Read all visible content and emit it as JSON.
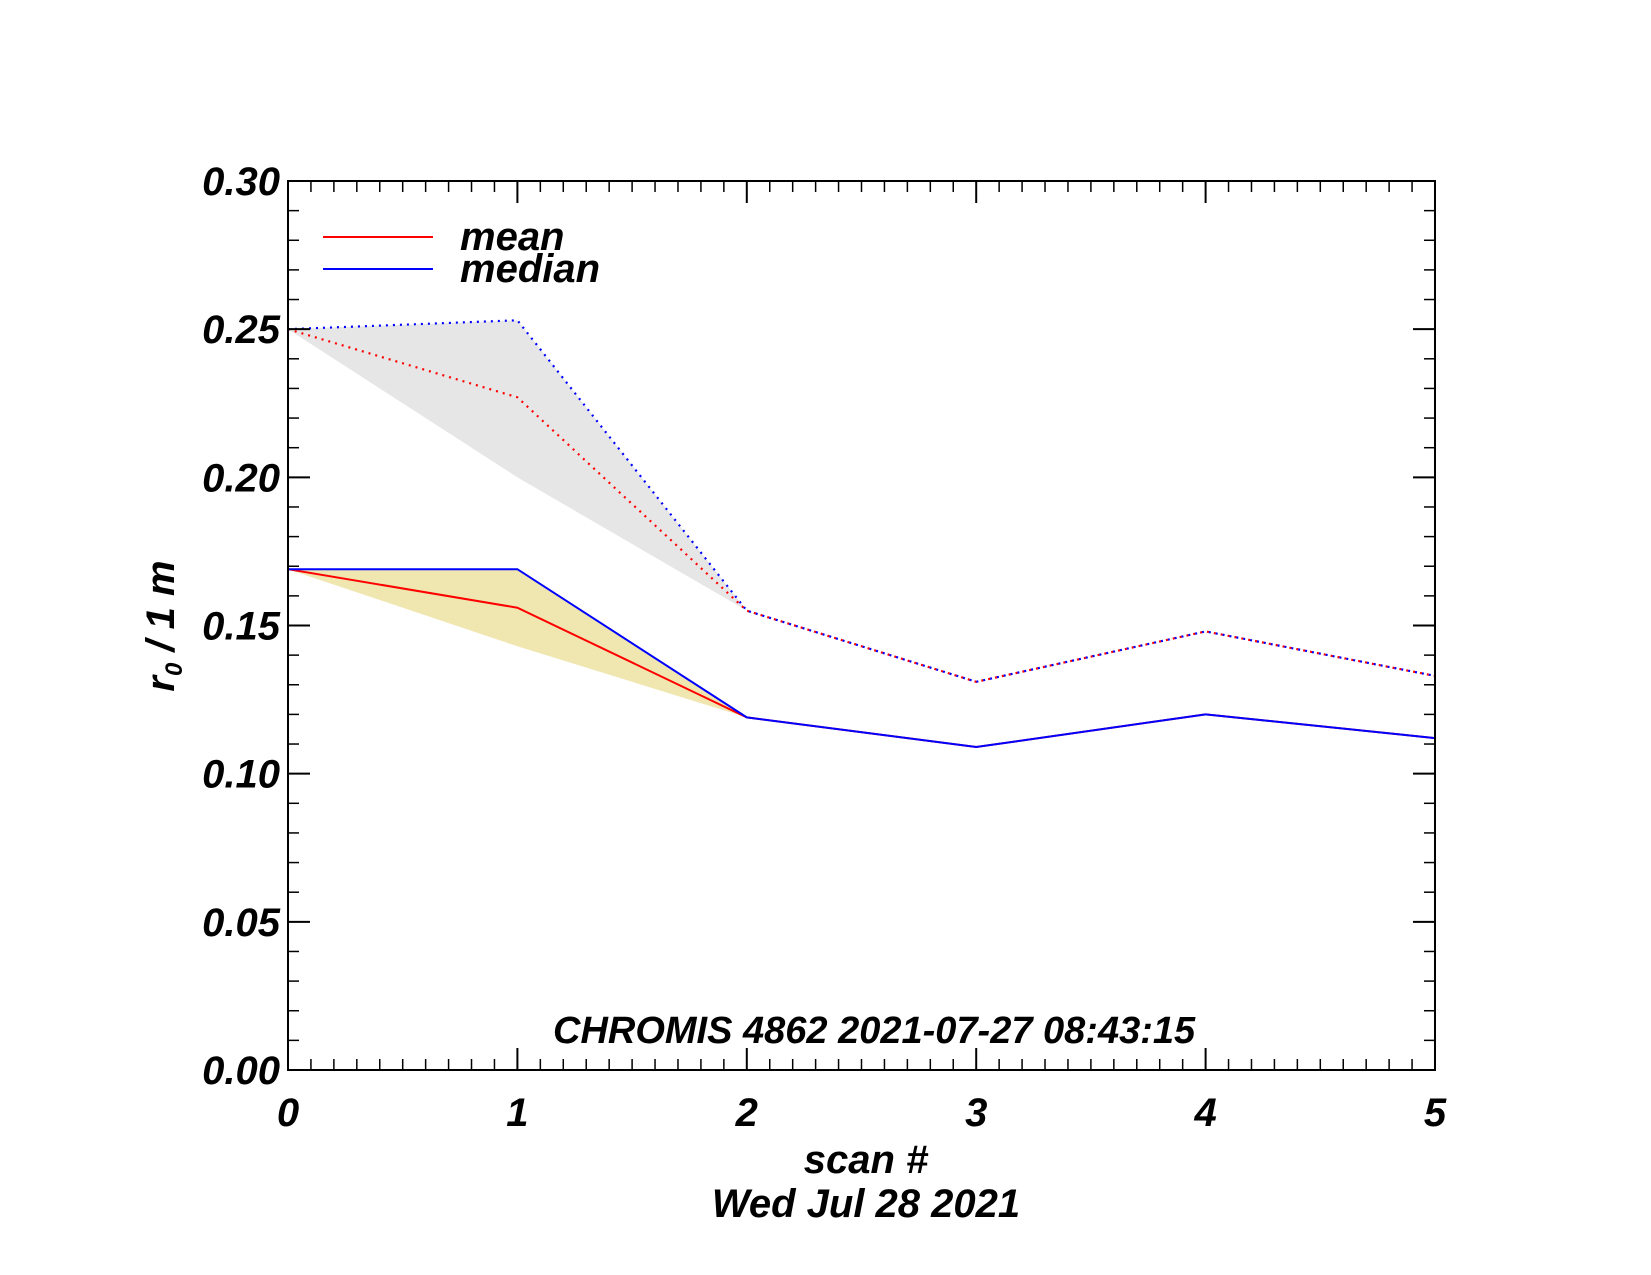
{
  "chart_data": {
    "type": "line",
    "title": "",
    "xlabel": "scan #",
    "ylabel_main": "r",
    "ylabel_sub": "0",
    "ylabel_rest": " / 1 m",
    "date_label": "Wed Jul 28 2021",
    "annotation": "CHROMIS 4862 2021-07-27 08:43:15",
    "xlim": [
      0,
      5
    ],
    "ylim": [
      0.0,
      0.3
    ],
    "x_ticks": [
      0,
      1,
      2,
      3,
      4,
      5
    ],
    "x_tick_labels": [
      "0",
      "1",
      "2",
      "3",
      "4",
      "5"
    ],
    "y_ticks": [
      0.0,
      0.05,
      0.1,
      0.15,
      0.2,
      0.25,
      0.3
    ],
    "y_tick_labels": [
      "0.00",
      "0.05",
      "0.10",
      "0.15",
      "0.20",
      "0.25",
      "0.30"
    ],
    "x": [
      0,
      1,
      2,
      3,
      4,
      5
    ],
    "legend": [
      {
        "name": "mean",
        "color": "#ff0000"
      },
      {
        "name": "median",
        "color": "#0000ff"
      }
    ],
    "series": [
      {
        "name": "mean",
        "style": "solid",
        "color": "#ff0000",
        "values": [
          0.169,
          0.156,
          0.119,
          0.109,
          0.12,
          0.112
        ]
      },
      {
        "name": "median",
        "style": "solid",
        "color": "#0000ff",
        "values": [
          0.169,
          0.169,
          0.119,
          0.109,
          0.12,
          0.112
        ]
      },
      {
        "name": "mean",
        "style": "dotted",
        "color": "#ff0000",
        "values": [
          0.25,
          0.227,
          0.155,
          0.131,
          0.148,
          0.133
        ]
      },
      {
        "name": "median",
        "style": "dotted",
        "color": "#0000ff",
        "values": [
          0.25,
          0.253,
          0.155,
          0.131,
          0.148,
          0.133
        ]
      }
    ],
    "bands": [
      {
        "color": "#efe6b0",
        "x": [
          0,
          1,
          2
        ],
        "lower": [
          0.169,
          0.143,
          0.119
        ],
        "upper": [
          0.169,
          0.169,
          0.119
        ]
      },
      {
        "color": "#e6e6e6",
        "x": [
          0,
          1,
          2
        ],
        "lower": [
          0.25,
          0.2,
          0.155
        ],
        "upper": [
          0.25,
          0.253,
          0.155
        ]
      }
    ]
  }
}
